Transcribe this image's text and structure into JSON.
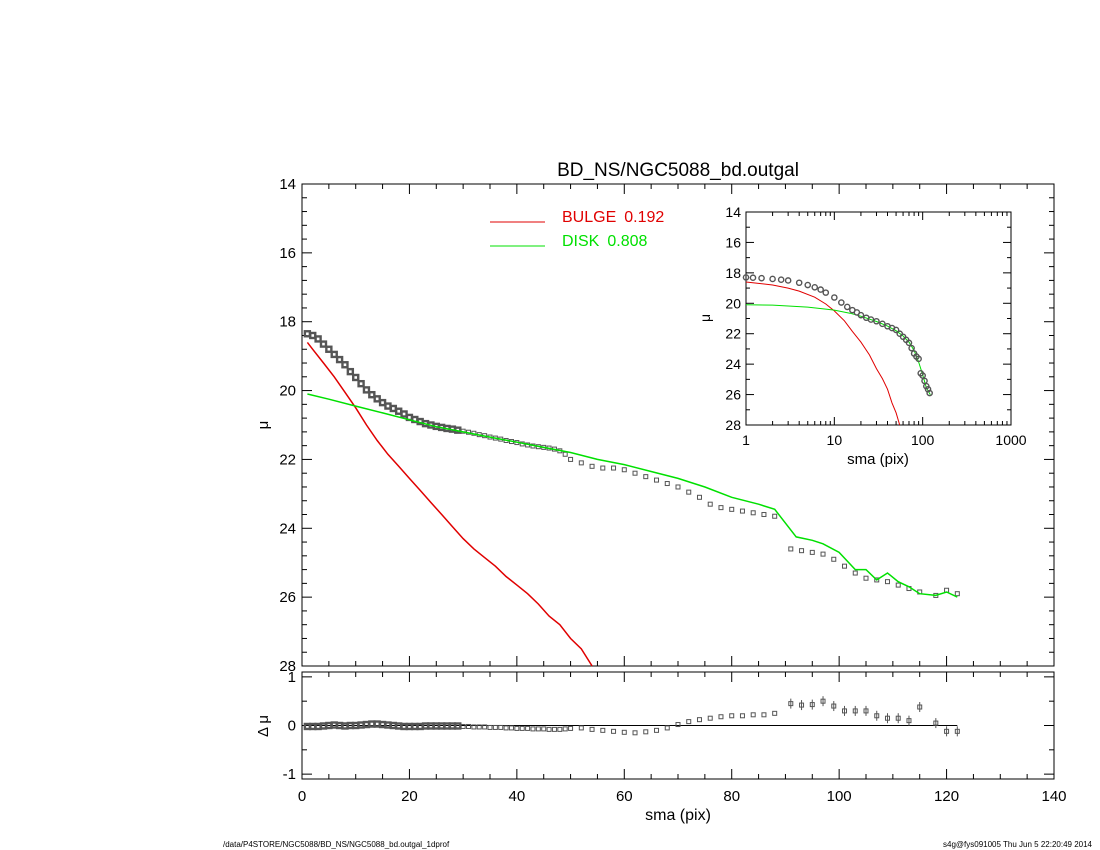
{
  "chart_data": [
    {
      "type": "line",
      "title": "BD_NS/NGC5088_bd.outgal",
      "ylabel": "μ",
      "xlim": [
        0,
        140
      ],
      "ylim": [
        28,
        14
      ],
      "y_inverted": true,
      "xticks": [
        0,
        20,
        40,
        60,
        80,
        100,
        120,
        140
      ],
      "yticks": [
        14,
        16,
        18,
        20,
        22,
        24,
        26,
        28
      ],
      "grid": false,
      "legend_position": "top-center",
      "series": [
        {
          "name": "data",
          "style": "open-squares-with-error-bars",
          "color": "#555555",
          "x": [
            1,
            2,
            3,
            4,
            5,
            6,
            7,
            8,
            9,
            10,
            11,
            12,
            13,
            14,
            15,
            16,
            17,
            18,
            19,
            20,
            21,
            22,
            23,
            24,
            25,
            26,
            27,
            28,
            29,
            30,
            31,
            32,
            33,
            34,
            35,
            36,
            37,
            38,
            39,
            40,
            41,
            42,
            43,
            44,
            45,
            46,
            47,
            48,
            49,
            50,
            52,
            54,
            56,
            58,
            60,
            62,
            64,
            66,
            68,
            70,
            72,
            74,
            76,
            78,
            80,
            82,
            84,
            86,
            88,
            91,
            93,
            95,
            97,
            99,
            101,
            103,
            105,
            107,
            109,
            111,
            113,
            115,
            118,
            120,
            122
          ],
          "y": [
            18.35,
            18.4,
            18.5,
            18.65,
            18.8,
            18.95,
            19.1,
            19.25,
            19.45,
            19.62,
            19.8,
            19.98,
            20.12,
            20.24,
            20.35,
            20.45,
            20.52,
            20.6,
            20.68,
            20.78,
            20.84,
            20.9,
            20.96,
            21.0,
            21.04,
            21.07,
            21.1,
            21.12,
            21.15,
            21.18,
            21.21,
            21.24,
            21.28,
            21.31,
            21.35,
            21.38,
            21.41,
            21.45,
            21.48,
            21.51,
            21.55,
            21.58,
            21.61,
            21.63,
            21.65,
            21.67,
            21.7,
            21.75,
            21.85,
            22.0,
            22.1,
            22.2,
            22.25,
            22.25,
            22.3,
            22.4,
            22.5,
            22.6,
            22.7,
            22.8,
            22.95,
            23.1,
            23.3,
            23.4,
            23.45,
            23.5,
            23.55,
            23.6,
            23.65,
            24.6,
            24.65,
            24.7,
            24.75,
            24.9,
            25.1,
            25.3,
            25.45,
            25.5,
            25.55,
            25.65,
            25.75,
            25.85,
            25.95,
            25.8,
            25.9
          ]
        },
        {
          "name": "BULGE",
          "fraction": "0.192",
          "color": "#e00000",
          "x": [
            1,
            2,
            4,
            6,
            8,
            10,
            12,
            14,
            16,
            18,
            20,
            22,
            24,
            26,
            28,
            30,
            32,
            34,
            36,
            38,
            40,
            42,
            44,
            46,
            48,
            50,
            52,
            54
          ],
          "y": [
            18.6,
            18.8,
            19.2,
            19.6,
            20.05,
            20.5,
            21.0,
            21.45,
            21.85,
            22.2,
            22.55,
            22.9,
            23.25,
            23.6,
            23.95,
            24.3,
            24.6,
            24.85,
            25.1,
            25.4,
            25.65,
            25.9,
            26.2,
            26.55,
            26.8,
            27.2,
            27.5,
            28.0
          ]
        },
        {
          "name": "DISK",
          "fraction": "0.808",
          "color": "#00e000",
          "x": [
            1,
            5,
            10,
            15,
            20,
            25,
            30,
            35,
            40,
            45,
            50,
            55,
            60,
            65,
            70,
            75,
            80,
            85,
            88,
            90,
            92,
            95,
            97,
            100,
            103,
            105,
            107,
            109,
            111,
            113,
            115,
            118,
            120,
            122
          ],
          "y": [
            20.1,
            20.25,
            20.45,
            20.65,
            20.85,
            21.05,
            21.2,
            21.35,
            21.5,
            21.65,
            21.8,
            22.0,
            22.15,
            22.35,
            22.55,
            22.8,
            23.1,
            23.3,
            23.45,
            23.85,
            24.25,
            24.35,
            24.45,
            24.7,
            25.2,
            25.2,
            25.5,
            25.3,
            25.55,
            25.7,
            25.9,
            25.95,
            25.85,
            26.0
          ]
        }
      ],
      "legend": [
        {
          "label": "BULGE",
          "value": "0.192",
          "color": "#e00000"
        },
        {
          "label": "DISK",
          "value": "0.808",
          "color": "#00e000"
        }
      ]
    },
    {
      "type": "line",
      "title": "",
      "xlabel": "sma (pix)",
      "ylabel": "Δ μ",
      "xlim": [
        0,
        140
      ],
      "ylim": [
        -1.1,
        1.1
      ],
      "xticks": [
        0,
        20,
        40,
        60,
        80,
        100,
        120,
        140
      ],
      "yticks": [
        -1,
        0,
        1
      ],
      "grid": false,
      "series": [
        {
          "name": "residual",
          "style": "open-squares-with-error-bars",
          "color": "#555555",
          "x": [
            1,
            2,
            3,
            4,
            5,
            6,
            7,
            8,
            9,
            10,
            11,
            12,
            13,
            14,
            15,
            16,
            17,
            18,
            19,
            20,
            21,
            22,
            23,
            24,
            25,
            26,
            27,
            28,
            29,
            30,
            31,
            32,
            33,
            34,
            35,
            36,
            37,
            38,
            39,
            40,
            41,
            42,
            43,
            44,
            45,
            46,
            47,
            48,
            49,
            50,
            52,
            54,
            56,
            58,
            60,
            62,
            64,
            66,
            68,
            70,
            72,
            74,
            76,
            78,
            80,
            82,
            84,
            86,
            88,
            91,
            93,
            95,
            97,
            99,
            101,
            103,
            105,
            107,
            109,
            111,
            113,
            115,
            118,
            120,
            122
          ],
          "y": [
            -0.02,
            -0.02,
            -0.02,
            -0.01,
            0.0,
            0.01,
            0.0,
            -0.01,
            0.0,
            0.0,
            0.01,
            0.02,
            0.03,
            0.03,
            0.02,
            0.01,
            0.0,
            -0.01,
            -0.02,
            -0.02,
            -0.02,
            -0.02,
            -0.01,
            -0.01,
            -0.01,
            -0.01,
            -0.01,
            -0.01,
            -0.01,
            -0.02,
            -0.02,
            -0.03,
            -0.03,
            -0.03,
            -0.04,
            -0.04,
            -0.04,
            -0.05,
            -0.05,
            -0.06,
            -0.06,
            -0.06,
            -0.07,
            -0.07,
            -0.07,
            -0.08,
            -0.08,
            -0.08,
            -0.07,
            -0.06,
            -0.05,
            -0.08,
            -0.1,
            -0.12,
            -0.14,
            -0.15,
            -0.13,
            -0.1,
            -0.05,
            0.02,
            0.08,
            0.12,
            0.15,
            0.18,
            0.2,
            0.2,
            0.22,
            0.22,
            0.25,
            0.45,
            0.42,
            0.43,
            0.5,
            0.4,
            0.3,
            0.3,
            0.3,
            0.2,
            0.15,
            0.15,
            0.1,
            0.38,
            0.05,
            -0.12,
            -0.12
          ]
        },
        {
          "name": "zero",
          "color": "#000000",
          "x": [
            0,
            122
          ],
          "y": [
            0,
            0
          ]
        }
      ]
    },
    {
      "type": "line",
      "title": "",
      "inset": true,
      "xlabel": "sma (pix)",
      "ylabel": "μ",
      "x_scale": "log",
      "xlim": [
        1,
        1000
      ],
      "ylim": [
        28,
        14
      ],
      "y_inverted": true,
      "xticks": [
        1,
        10,
        100,
        1000
      ],
      "yticks": [
        14,
        16,
        18,
        20,
        22,
        24,
        26,
        28
      ],
      "grid": false,
      "series": [
        {
          "name": "data",
          "style": "open-circles",
          "color": "#555555",
          "x": [
            1,
            1.2,
            1.5,
            2,
            2.5,
            3,
            4,
            5,
            6,
            7,
            8,
            10,
            12,
            14,
            16,
            18,
            20,
            23,
            26,
            30,
            35,
            40,
            45,
            50,
            55,
            60,
            65,
            70,
            75,
            80,
            85,
            90,
            95,
            100,
            105,
            110,
            115,
            120
          ],
          "y": [
            18.3,
            18.32,
            18.35,
            18.4,
            18.45,
            18.5,
            18.65,
            18.8,
            18.95,
            19.1,
            19.3,
            19.62,
            19.95,
            20.24,
            20.45,
            20.6,
            20.78,
            20.95,
            21.07,
            21.18,
            21.35,
            21.51,
            21.63,
            21.75,
            22.0,
            22.2,
            22.4,
            22.6,
            22.95,
            23.3,
            23.5,
            23.65,
            24.6,
            24.75,
            25.1,
            25.45,
            25.65,
            25.9
          ]
        },
        {
          "name": "BULGE",
          "color": "#e00000",
          "x": [
            1,
            2,
            3,
            4,
            6,
            8,
            10,
            13,
            16,
            20,
            25,
            30,
            35,
            40,
            45,
            50,
            55
          ],
          "y": [
            18.6,
            18.8,
            19.0,
            19.2,
            19.6,
            20.05,
            20.5,
            21.15,
            21.85,
            22.55,
            23.4,
            24.3,
            24.95,
            25.65,
            26.55,
            27.2,
            28.0
          ]
        },
        {
          "name": "DISK",
          "color": "#00e000",
          "x": [
            1,
            2,
            3,
            5,
            8,
            10,
            15,
            20,
            30,
            40,
            50,
            60,
            70,
            80,
            90,
            100,
            110,
            122
          ],
          "y": [
            20.1,
            20.12,
            20.18,
            20.25,
            20.38,
            20.45,
            20.65,
            20.85,
            21.2,
            21.5,
            21.8,
            22.15,
            22.55,
            23.1,
            23.85,
            24.7,
            25.55,
            26.0
          ]
        }
      ]
    }
  ],
  "footer": {
    "left": "/data/P4STORE/NGC5088/BD_NS/NGC5088_bd.outgal_1dprof",
    "right": "s4g@fys091005  Thu Jun  5 22:20:49 2014"
  }
}
